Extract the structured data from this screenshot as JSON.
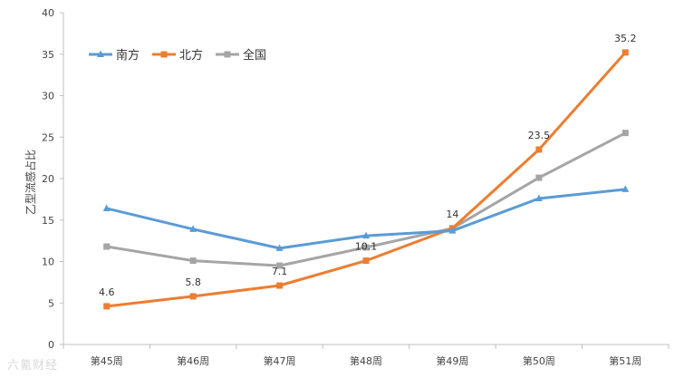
{
  "chart_data": {
    "type": "line",
    "title": "",
    "xlabel": "",
    "ylabel": "乙型流感占比",
    "ylim": [
      0,
      40
    ],
    "yticks": [
      0,
      5,
      10,
      15,
      20,
      25,
      30,
      35,
      40
    ],
    "grid": false,
    "legend_position": "top-left",
    "categories": [
      "第45周",
      "第46周",
      "第47周",
      "第48周",
      "第49周",
      "第50周",
      "第51周"
    ],
    "series": [
      {
        "name": "南方",
        "color": "#5b9bd5",
        "marker": "triangle",
        "values": [
          16.4,
          13.9,
          11.6,
          13.1,
          13.7,
          17.6,
          18.7
        ]
      },
      {
        "name": "北方",
        "color": "#ed7d31",
        "marker": "square",
        "values": [
          4.6,
          5.8,
          7.1,
          10.1,
          14,
          23.5,
          35.2
        ],
        "data_labels": [
          "4.6",
          "5.8",
          "7.1",
          "10.1",
          "14",
          "23.5",
          "35.2"
        ]
      },
      {
        "name": "全国",
        "color": "#a5a5a5",
        "marker": "square",
        "values": [
          11.8,
          10.1,
          9.5,
          11.7,
          14,
          20.1,
          25.5
        ]
      }
    ]
  },
  "watermark": "六氪财经"
}
